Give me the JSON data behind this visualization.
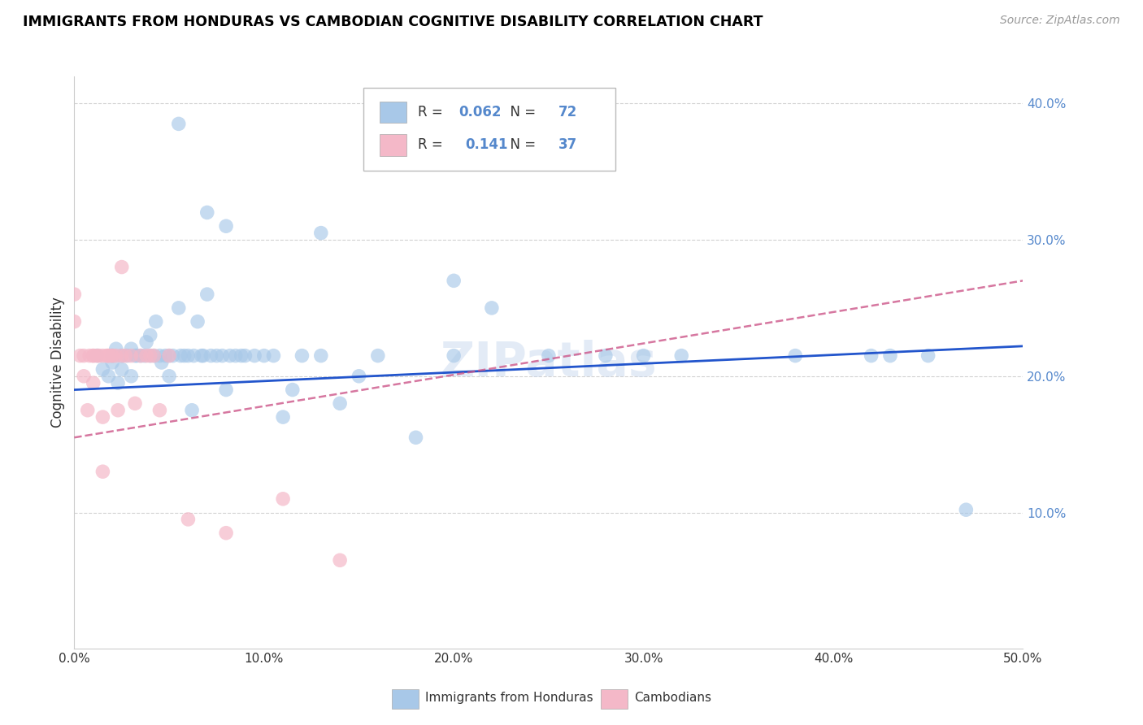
{
  "title": "IMMIGRANTS FROM HONDURAS VS CAMBODIAN COGNITIVE DISABILITY CORRELATION CHART",
  "source": "Source: ZipAtlas.com",
  "ylabel_label": "Cognitive Disability",
  "legend_label1": "Immigrants from Honduras",
  "legend_label2": "Cambodians",
  "R1": "0.062",
  "N1": "72",
  "R2": "0.141",
  "N2": "37",
  "blue_color": "#a8c8e8",
  "pink_color": "#f4b8c8",
  "line_blue": "#2255cc",
  "line_pink": "#cc5588",
  "xlim": [
    0.0,
    0.5
  ],
  "ylim": [
    0.0,
    0.42
  ],
  "blue_x": [
    0.012,
    0.015,
    0.018,
    0.02,
    0.02,
    0.022,
    0.023,
    0.025,
    0.025,
    0.028,
    0.03,
    0.03,
    0.032,
    0.033,
    0.035,
    0.037,
    0.038,
    0.04,
    0.04,
    0.042,
    0.043,
    0.045,
    0.046,
    0.048,
    0.05,
    0.05,
    0.052,
    0.055,
    0.056,
    0.058,
    0.06,
    0.062,
    0.063,
    0.065,
    0.067,
    0.068,
    0.07,
    0.072,
    0.075,
    0.078,
    0.08,
    0.082,
    0.085,
    0.088,
    0.09,
    0.095,
    0.1,
    0.105,
    0.11,
    0.115,
    0.12,
    0.13,
    0.14,
    0.15,
    0.16,
    0.18,
    0.2,
    0.22,
    0.25,
    0.28,
    0.055,
    0.07,
    0.08,
    0.13,
    0.2,
    0.3,
    0.32,
    0.38,
    0.42,
    0.43,
    0.45,
    0.47
  ],
  "blue_y": [
    0.215,
    0.205,
    0.2,
    0.21,
    0.215,
    0.22,
    0.195,
    0.215,
    0.205,
    0.215,
    0.22,
    0.2,
    0.215,
    0.215,
    0.215,
    0.215,
    0.225,
    0.215,
    0.23,
    0.215,
    0.24,
    0.215,
    0.21,
    0.215,
    0.215,
    0.2,
    0.215,
    0.25,
    0.215,
    0.215,
    0.215,
    0.175,
    0.215,
    0.24,
    0.215,
    0.215,
    0.26,
    0.215,
    0.215,
    0.215,
    0.19,
    0.215,
    0.215,
    0.215,
    0.215,
    0.215,
    0.215,
    0.215,
    0.17,
    0.19,
    0.215,
    0.215,
    0.18,
    0.2,
    0.215,
    0.155,
    0.215,
    0.25,
    0.215,
    0.215,
    0.385,
    0.32,
    0.31,
    0.305,
    0.27,
    0.215,
    0.215,
    0.215,
    0.215,
    0.215,
    0.215,
    0.102
  ],
  "pink_x": [
    0.0,
    0.0,
    0.003,
    0.005,
    0.005,
    0.007,
    0.008,
    0.01,
    0.01,
    0.01,
    0.012,
    0.013,
    0.015,
    0.015,
    0.015,
    0.017,
    0.018,
    0.018,
    0.02,
    0.02,
    0.022,
    0.023,
    0.025,
    0.025,
    0.027,
    0.03,
    0.032,
    0.035,
    0.038,
    0.04,
    0.042,
    0.045,
    0.05,
    0.06,
    0.08,
    0.11,
    0.14
  ],
  "pink_y": [
    0.26,
    0.24,
    0.215,
    0.215,
    0.2,
    0.175,
    0.215,
    0.215,
    0.215,
    0.195,
    0.215,
    0.215,
    0.215,
    0.17,
    0.13,
    0.215,
    0.215,
    0.215,
    0.215,
    0.215,
    0.215,
    0.175,
    0.28,
    0.215,
    0.215,
    0.215,
    0.18,
    0.215,
    0.215,
    0.215,
    0.215,
    0.175,
    0.215,
    0.095,
    0.085,
    0.11,
    0.065
  ],
  "blue_line_start_y": 0.19,
  "blue_line_end_y": 0.222,
  "pink_line_start_y": 0.155,
  "pink_line_end_y": 0.27
}
